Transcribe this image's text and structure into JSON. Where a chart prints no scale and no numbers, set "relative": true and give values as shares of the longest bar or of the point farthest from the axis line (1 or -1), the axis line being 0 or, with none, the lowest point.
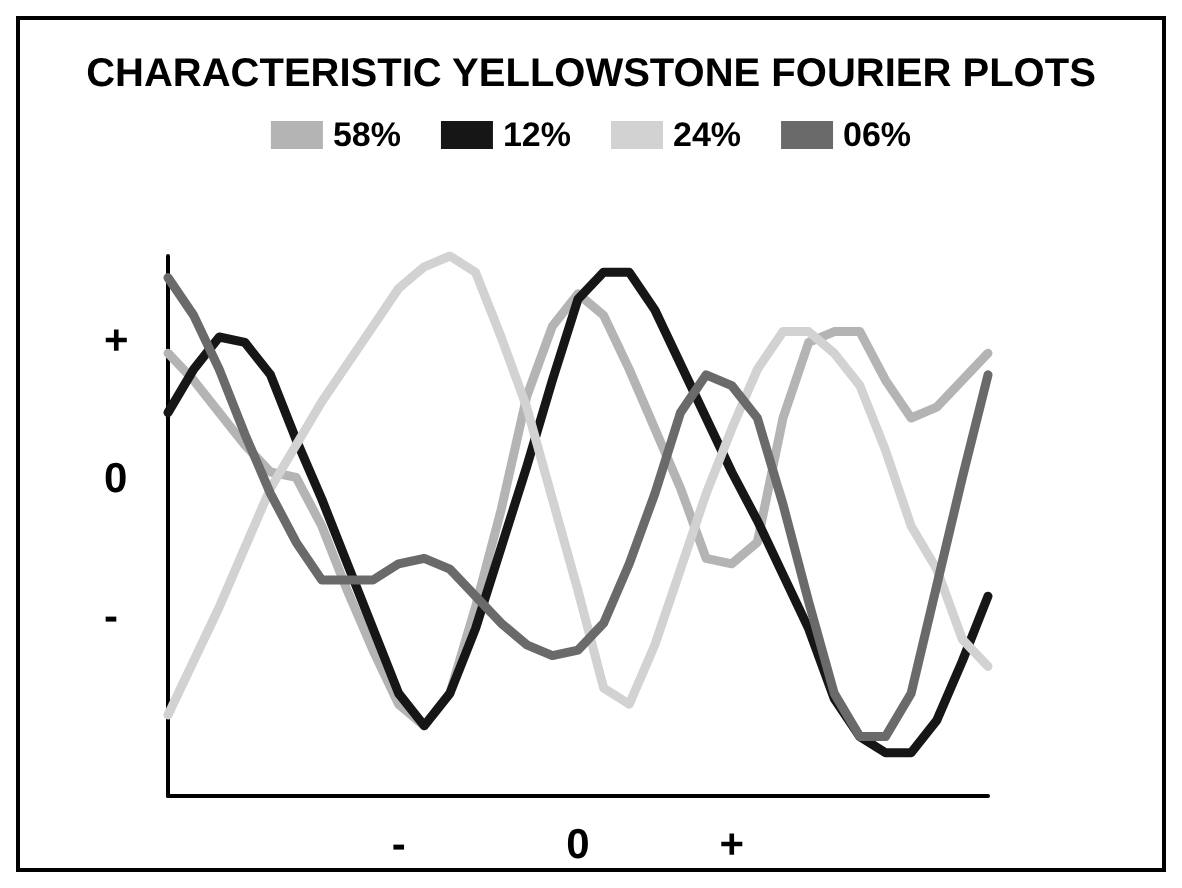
{
  "chart_data": {
    "type": "line",
    "title": "CHARACTERISTIC YELLOWSTONE FOURIER PLOTS",
    "relative": true,
    "categories": [
      null,
      null,
      null,
      null,
      null,
      null,
      null,
      null,
      null,
      "-",
      null,
      null,
      null,
      null,
      null,
      null,
      "0",
      null,
      null,
      null,
      null,
      null,
      "+",
      null,
      null,
      null,
      null,
      null,
      null,
      null,
      null,
      null,
      null
    ],
    "annotations": [
      "+",
      "0",
      "-"
    ],
    "grid": false,
    "legend": "top",
    "marker": "none",
    "line_style": "solid",
    "series": [
      {
        "name": "58%",
        "color": "#b4b4b4",
        "values": [
          0.82,
          0.77,
          0.71,
          0.65,
          0.6,
          0.59,
          0.5,
          0.38,
          0.27,
          0.17,
          0.13,
          0.19,
          0.35,
          0.53,
          0.74,
          0.87,
          0.93,
          0.89,
          0.79,
          0.68,
          0.57,
          0.44,
          0.43,
          0.47,
          0.7,
          0.84,
          0.86,
          0.86,
          0.77,
          0.7,
          0.72,
          0.77,
          0.82
        ]
      },
      {
        "name": "12%",
        "color": "#161616",
        "values": [
          0.71,
          0.79,
          0.85,
          0.84,
          0.78,
          0.66,
          0.55,
          0.43,
          0.31,
          0.19,
          0.13,
          0.19,
          0.31,
          0.46,
          0.61,
          0.77,
          0.92,
          0.97,
          0.97,
          0.9,
          0.8,
          0.7,
          0.6,
          0.51,
          0.41,
          0.31,
          0.18,
          0.11,
          0.08,
          0.08,
          0.14,
          0.25,
          0.37
        ]
      },
      {
        "name": "24%",
        "color": "#d2d2d2",
        "values": [
          0.15,
          0.25,
          0.35,
          0.46,
          0.57,
          0.65,
          0.73,
          0.8,
          0.87,
          0.94,
          0.98,
          1,
          0.97,
          0.85,
          0.72,
          0.55,
          0.38,
          0.2,
          0.17,
          0.28,
          0.42,
          0.56,
          0.68,
          0.79,
          0.86,
          0.86,
          0.82,
          0.76,
          0.64,
          0.5,
          0.42,
          0.29,
          0.24
        ]
      },
      {
        "name": "06%",
        "color": "#6a6a6a",
        "values": [
          0.96,
          0.89,
          0.79,
          0.67,
          0.56,
          0.47,
          0.4,
          0.4,
          0.4,
          0.43,
          0.44,
          0.42,
          0.37,
          0.32,
          0.28,
          0.26,
          0.27,
          0.32,
          0.43,
          0.56,
          0.71,
          0.78,
          0.76,
          0.7,
          0.54,
          0.36,
          0.19,
          0.11,
          0.11,
          0.19,
          0.39,
          0.59,
          0.78
        ]
      }
    ]
  }
}
